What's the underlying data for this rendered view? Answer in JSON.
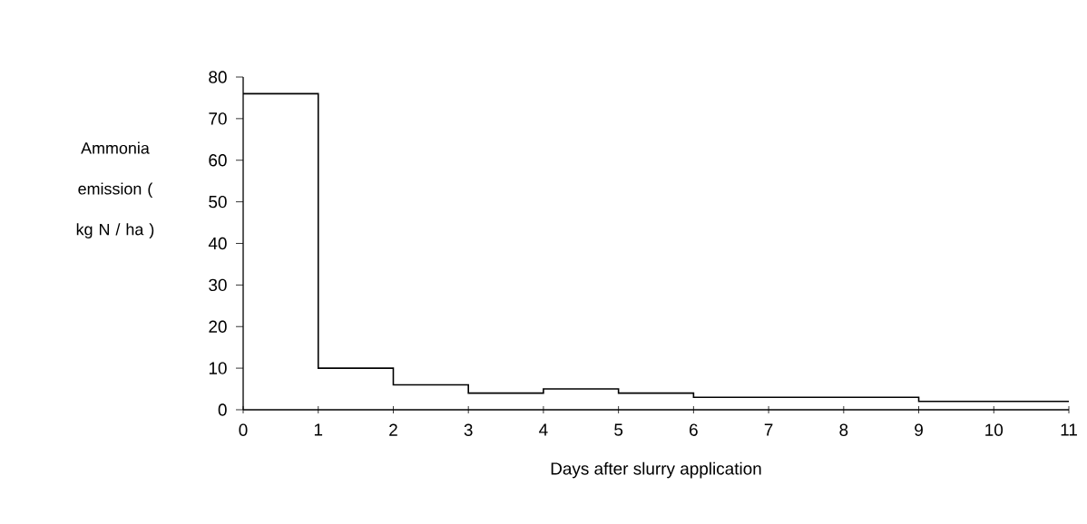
{
  "chart_data": {
    "type": "step",
    "xlabel": "Days after slurry application",
    "ylabel": "Ammonia emission ( kg N / ha )",
    "x": [
      0,
      1,
      2,
      3,
      4,
      5,
      6,
      7,
      8,
      9,
      10,
      11
    ],
    "values": [
      76,
      10,
      6,
      4,
      5,
      4,
      3,
      3,
      3,
      2,
      2,
      2
    ],
    "color": "#000000",
    "xlim": [
      0,
      11
    ],
    "xticks": [
      0,
      1,
      2,
      3,
      4,
      5,
      6,
      7,
      8,
      9,
      10,
      11
    ],
    "ylim": [
      0,
      80
    ],
    "yticks": [
      0,
      10,
      20,
      30,
      40,
      50,
      60,
      70,
      80
    ],
    "marker": "none"
  }
}
